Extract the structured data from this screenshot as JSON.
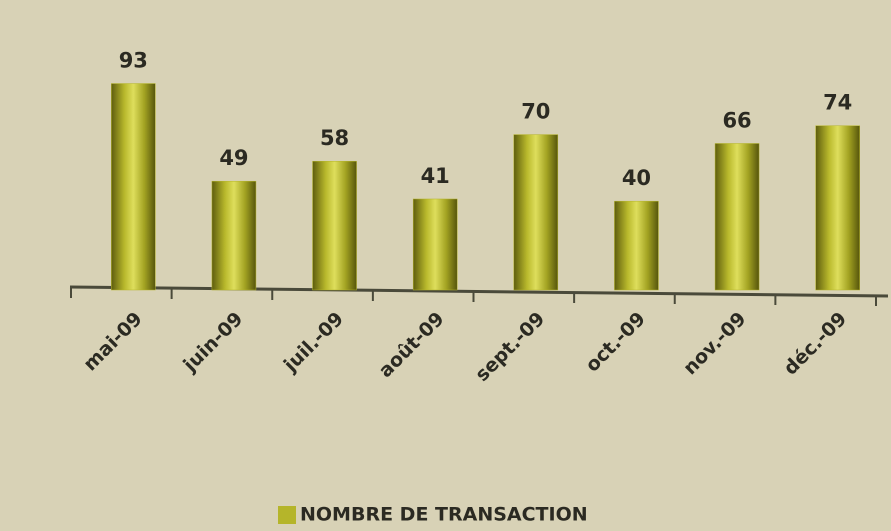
{
  "chart_data": {
    "type": "bar",
    "categories": [
      "mai-09",
      "juin-09",
      "juil.-09",
      "août-09",
      "sept.-09",
      "oct.-09",
      "nov.-09",
      "déc.-09"
    ],
    "series": [
      {
        "name": "NOMBRE DE TRANSACTION",
        "color": "#b5b52a",
        "values": [
          93,
          49,
          58,
          41,
          70,
          40,
          66,
          74
        ]
      }
    ],
    "ylim": [
      0,
      100
    ],
    "legend": "bottom"
  }
}
